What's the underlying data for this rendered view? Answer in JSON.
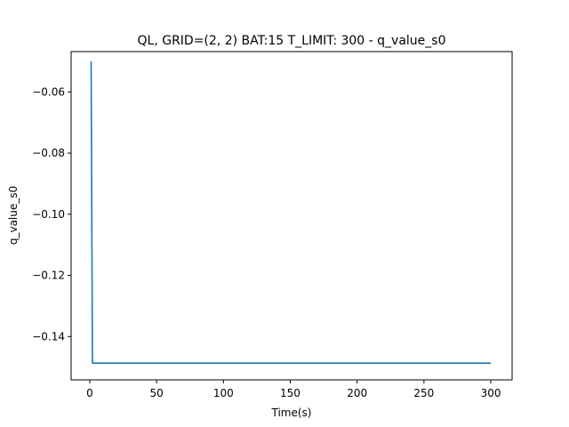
{
  "chart_data": {
    "type": "line",
    "title": "QL, GRID=(2, 2)   BAT:15 T_LIMIT:  300 - q_value_s0",
    "xlabel": "Time(s)",
    "ylabel": "q_value_s0",
    "xlim": [
      -13.95,
      315.95
    ],
    "ylim": [
      -0.15418,
      -0.0468
    ],
    "xticks": [
      0,
      50,
      100,
      150,
      200,
      250,
      300
    ],
    "yticks": [
      -0.06,
      -0.08,
      -0.1,
      -0.12,
      -0.14
    ],
    "ytick_labels": [
      "−0.06",
      "−0.08",
      "−0.10",
      "−0.12",
      "−0.14"
    ],
    "grid": false,
    "series": [
      {
        "color": "#1f77b4",
        "x": [
          1,
          2,
          300
        ],
        "y": [
          -0.05,
          -0.1487,
          -0.1487
        ]
      }
    ]
  }
}
